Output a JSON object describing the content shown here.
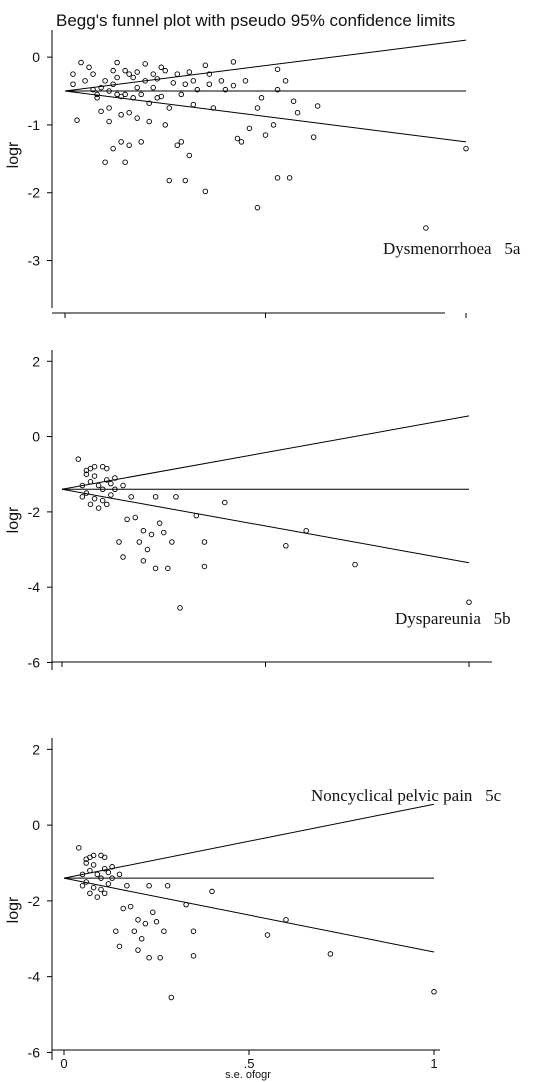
{
  "title": "Begg's funnel plot with pseudo 95% confidence limits",
  "xlabel": "s.e. ofogr",
  "chart_data": [
    {
      "type": "scatter",
      "label": "Dysmenorrhoea   5a",
      "ylabel": "logr",
      "yticks": [
        0,
        -1,
        -2,
        -3
      ],
      "ylim": [
        -3.7,
        0.4
      ],
      "xlim": [
        0,
        1
      ],
      "center": -0.5,
      "upper_limit": [
        [
          0,
          -0.5
        ],
        [
          1,
          0.25
        ]
      ],
      "lower_limit": [
        [
          0,
          -0.5
        ],
        [
          1,
          -1.25
        ]
      ],
      "points": [
        [
          0.02,
          -0.25
        ],
        [
          0.02,
          -0.4
        ],
        [
          0.03,
          -0.93
        ],
        [
          0.04,
          -0.08
        ],
        [
          0.05,
          -0.35
        ],
        [
          0.06,
          -0.15
        ],
        [
          0.07,
          -0.48
        ],
        [
          0.07,
          -0.25
        ],
        [
          0.08,
          -0.55
        ],
        [
          0.08,
          -0.6
        ],
        [
          0.09,
          -0.8
        ],
        [
          0.09,
          -0.45
        ],
        [
          0.1,
          -1.55
        ],
        [
          0.1,
          -0.35
        ],
        [
          0.11,
          -0.95
        ],
        [
          0.11,
          -0.5
        ],
        [
          0.11,
          -0.75
        ],
        [
          0.12,
          -1.35
        ],
        [
          0.12,
          -0.4
        ],
        [
          0.12,
          -0.2
        ],
        [
          0.13,
          -0.55
        ],
        [
          0.13,
          -0.3
        ],
        [
          0.13,
          -0.08
        ],
        [
          0.14,
          -1.25
        ],
        [
          0.14,
          -0.58
        ],
        [
          0.14,
          -0.85
        ],
        [
          0.15,
          -1.55
        ],
        [
          0.15,
          -0.2
        ],
        [
          0.15,
          -0.55
        ],
        [
          0.16,
          -0.25
        ],
        [
          0.16,
          -0.82
        ],
        [
          0.16,
          -1.3
        ],
        [
          0.17,
          -0.3
        ],
        [
          0.17,
          -0.6
        ],
        [
          0.18,
          -0.45
        ],
        [
          0.18,
          -0.22
        ],
        [
          0.18,
          -0.9
        ],
        [
          0.19,
          -0.55
        ],
        [
          0.19,
          -1.25
        ],
        [
          0.2,
          -0.1
        ],
        [
          0.2,
          -0.35
        ],
        [
          0.21,
          -0.68
        ],
        [
          0.21,
          -0.95
        ],
        [
          0.22,
          -0.25
        ],
        [
          0.22,
          -0.45
        ],
        [
          0.23,
          -0.6
        ],
        [
          0.23,
          -0.32
        ],
        [
          0.24,
          -0.15
        ],
        [
          0.24,
          -0.58
        ],
        [
          0.25,
          -1.0
        ],
        [
          0.25,
          -0.2
        ],
        [
          0.26,
          -0.75
        ],
        [
          0.26,
          -1.82
        ],
        [
          0.27,
          -0.38
        ],
        [
          0.28,
          -0.25
        ],
        [
          0.28,
          -1.3
        ],
        [
          0.29,
          -1.25
        ],
        [
          0.29,
          -0.55
        ],
        [
          0.3,
          -1.82
        ],
        [
          0.3,
          -0.4
        ],
        [
          0.31,
          -1.45
        ],
        [
          0.31,
          -0.22
        ],
        [
          0.32,
          -0.7
        ],
        [
          0.32,
          -0.35
        ],
        [
          0.33,
          -0.48
        ],
        [
          0.35,
          -1.98
        ],
        [
          0.35,
          -0.12
        ],
        [
          0.36,
          -0.4
        ],
        [
          0.36,
          -0.25
        ],
        [
          0.37,
          -0.75
        ],
        [
          0.39,
          -0.35
        ],
        [
          0.4,
          -0.48
        ],
        [
          0.42,
          -0.07
        ],
        [
          0.42,
          -0.42
        ],
        [
          0.43,
          -1.2
        ],
        [
          0.44,
          -1.25
        ],
        [
          0.45,
          -0.35
        ],
        [
          0.46,
          -1.05
        ],
        [
          0.48,
          -2.22
        ],
        [
          0.48,
          -0.75
        ],
        [
          0.49,
          -0.6
        ],
        [
          0.5,
          -1.15
        ],
        [
          0.52,
          -1.0
        ],
        [
          0.53,
          -0.48
        ],
        [
          0.53,
          -1.78
        ],
        [
          0.53,
          -0.18
        ],
        [
          0.55,
          -0.35
        ],
        [
          0.56,
          -1.78
        ],
        [
          0.57,
          -0.65
        ],
        [
          0.58,
          -0.82
        ],
        [
          0.62,
          -1.18
        ],
        [
          0.63,
          -0.72
        ],
        [
          1.0,
          -1.35
        ],
        [
          0.9,
          -2.52
        ]
      ]
    },
    {
      "type": "scatter",
      "label": "Dyspareunia   5b",
      "ylabel": "logr",
      "yticks": [
        2,
        0,
        -2,
        -4,
        -6
      ],
      "ylim": [
        -6.2,
        2.3
      ],
      "xlim": [
        0,
        1
      ],
      "center": -1.4,
      "upper_limit": [
        [
          0,
          -1.4
        ],
        [
          1,
          0.55
        ]
      ],
      "lower_limit": [
        [
          0,
          -1.4
        ],
        [
          1,
          -3.35
        ]
      ],
      "points": [
        [
          0.04,
          -0.6
        ],
        [
          0.05,
          -1.3
        ],
        [
          0.05,
          -1.6
        ],
        [
          0.06,
          -0.9
        ],
        [
          0.06,
          -1.0
        ],
        [
          0.06,
          -1.5
        ],
        [
          0.07,
          -1.2
        ],
        [
          0.07,
          -1.8
        ],
        [
          0.07,
          -0.85
        ],
        [
          0.08,
          -1.65
        ],
        [
          0.08,
          -1.05
        ],
        [
          0.08,
          -0.8
        ],
        [
          0.09,
          -1.9
        ],
        [
          0.09,
          -1.3
        ],
        [
          0.1,
          -1.7
        ],
        [
          0.1,
          -1.4
        ],
        [
          0.1,
          -0.8
        ],
        [
          0.11,
          -1.15
        ],
        [
          0.11,
          -1.8
        ],
        [
          0.11,
          -0.85
        ],
        [
          0.12,
          -1.25
        ],
        [
          0.12,
          -1.55
        ],
        [
          0.13,
          -1.1
        ],
        [
          0.13,
          -1.4
        ],
        [
          0.14,
          -2.8
        ],
        [
          0.15,
          -1.3
        ],
        [
          0.15,
          -3.2
        ],
        [
          0.16,
          -2.2
        ],
        [
          0.17,
          -1.6
        ],
        [
          0.18,
          -2.15
        ],
        [
          0.19,
          -2.8
        ],
        [
          0.2,
          -2.5
        ],
        [
          0.2,
          -3.3
        ],
        [
          0.21,
          -3.0
        ],
        [
          0.22,
          -2.6
        ],
        [
          0.23,
          -1.6
        ],
        [
          0.23,
          -3.5
        ],
        [
          0.24,
          -2.3
        ],
        [
          0.25,
          -2.55
        ],
        [
          0.26,
          -3.5
        ],
        [
          0.27,
          -2.8
        ],
        [
          0.28,
          -1.6
        ],
        [
          0.29,
          -4.55
        ],
        [
          0.33,
          -2.1
        ],
        [
          0.35,
          -2.8
        ],
        [
          0.35,
          -3.45
        ],
        [
          0.4,
          -1.75
        ],
        [
          0.55,
          -2.9
        ],
        [
          0.6,
          -2.5
        ],
        [
          0.72,
          -3.4
        ],
        [
          1.0,
          -4.4
        ]
      ]
    },
    {
      "type": "scatter",
      "label": "Noncyclical pelvic pain   5c",
      "ylabel": "logr",
      "xlabel": "s.e. ofogr",
      "xticks": [
        "0",
        ".5",
        "1"
      ],
      "yticks": [
        2,
        0,
        -2,
        -4,
        -6
      ],
      "ylim": [
        -6.2,
        2.3
      ],
      "xlim": [
        0,
        1
      ],
      "center": -1.4,
      "upper_limit": [
        [
          0,
          -1.4
        ],
        [
          1,
          0.55
        ]
      ],
      "lower_limit": [
        [
          0,
          -1.4
        ],
        [
          1,
          -3.35
        ]
      ],
      "points": [
        [
          0.04,
          -0.6
        ],
        [
          0.05,
          -1.3
        ],
        [
          0.05,
          -1.6
        ],
        [
          0.06,
          -0.9
        ],
        [
          0.06,
          -1.0
        ],
        [
          0.06,
          -1.5
        ],
        [
          0.07,
          -1.2
        ],
        [
          0.07,
          -1.8
        ],
        [
          0.07,
          -0.85
        ],
        [
          0.08,
          -1.65
        ],
        [
          0.08,
          -1.05
        ],
        [
          0.08,
          -0.8
        ],
        [
          0.09,
          -1.9
        ],
        [
          0.09,
          -1.3
        ],
        [
          0.1,
          -1.7
        ],
        [
          0.1,
          -1.4
        ],
        [
          0.1,
          -0.8
        ],
        [
          0.11,
          -1.15
        ],
        [
          0.11,
          -1.8
        ],
        [
          0.11,
          -0.85
        ],
        [
          0.12,
          -1.25
        ],
        [
          0.12,
          -1.55
        ],
        [
          0.13,
          -1.1
        ],
        [
          0.13,
          -1.4
        ],
        [
          0.14,
          -2.8
        ],
        [
          0.15,
          -1.3
        ],
        [
          0.15,
          -3.2
        ],
        [
          0.16,
          -2.2
        ],
        [
          0.17,
          -1.6
        ],
        [
          0.18,
          -2.15
        ],
        [
          0.19,
          -2.8
        ],
        [
          0.2,
          -2.5
        ],
        [
          0.2,
          -3.3
        ],
        [
          0.21,
          -3.0
        ],
        [
          0.22,
          -2.6
        ],
        [
          0.23,
          -1.6
        ],
        [
          0.23,
          -3.5
        ],
        [
          0.24,
          -2.3
        ],
        [
          0.25,
          -2.55
        ],
        [
          0.26,
          -3.5
        ],
        [
          0.27,
          -2.8
        ],
        [
          0.28,
          -1.6
        ],
        [
          0.29,
          -4.55
        ],
        [
          0.33,
          -2.1
        ],
        [
          0.35,
          -2.8
        ],
        [
          0.35,
          -3.45
        ],
        [
          0.4,
          -1.75
        ],
        [
          0.55,
          -2.9
        ],
        [
          0.6,
          -2.5
        ],
        [
          0.72,
          -3.4
        ],
        [
          1.0,
          -4.4
        ]
      ]
    }
  ]
}
